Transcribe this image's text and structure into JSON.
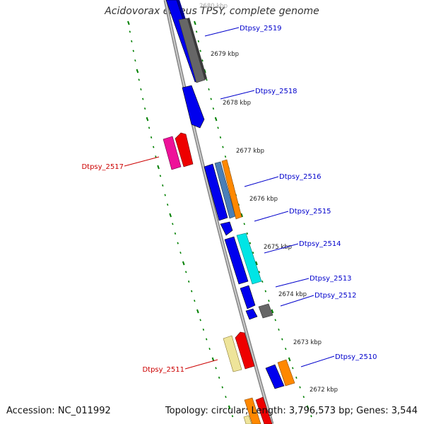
{
  "title": "Acidovorax ebreus TPSY, complete genome",
  "footer": {
    "accession": "Accession: NC_011992",
    "summary": "Topology: circular; Length: 3,796,573 bp; Genes: 3,544"
  },
  "colors": {
    "backbone": "#8c8c8c",
    "tick_major": "#008000",
    "tick_minor": "#2a8a2a",
    "label_forward": "#0000cc",
    "label_reverse": "#cc0000",
    "gene_blue": "#0000ee",
    "gene_gray": "#666666",
    "gene_red": "#ee0000",
    "gene_magenta": "#ee1199",
    "gene_steel": "#4a7fb8",
    "gene_orange": "#ff8800",
    "gene_cyan": "#00e5e5",
    "gene_khaki": "#eee49a"
  },
  "scale_labels": [
    "2680 kbp",
    "2679 kbp",
    "2678 kbp",
    "2677 kbp",
    "2676 kbp",
    "2675 kbp",
    "2674 kbp",
    "2673 kbp",
    "2672 kbp"
  ],
  "gene_labels": [
    {
      "text": "Dtpsy_2519",
      "strand": "forward"
    },
    {
      "text": "Dtpsy_2518",
      "strand": "forward"
    },
    {
      "text": "Dtpsy_2517",
      "strand": "reverse"
    },
    {
      "text": "Dtpsy_2516",
      "strand": "forward"
    },
    {
      "text": "Dtpsy_2515",
      "strand": "forward"
    },
    {
      "text": "Dtpsy_2514",
      "strand": "forward"
    },
    {
      "text": "Dtpsy_2513",
      "strand": "forward"
    },
    {
      "text": "Dtpsy_2512",
      "strand": "forward"
    },
    {
      "text": "Dtpsy_2511",
      "strand": "reverse"
    },
    {
      "text": "Dtpsy_2510",
      "strand": "forward"
    }
  ]
}
